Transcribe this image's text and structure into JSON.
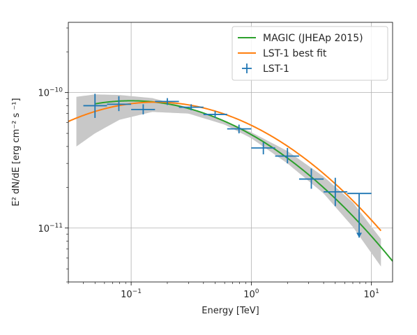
{
  "chart_data": {
    "type": "scatter",
    "title": "",
    "xlabel": "Energy [TeV]",
    "ylabel": "E² dN/dE [erg cm⁻² s ⁻¹]",
    "xscale": "log",
    "yscale": "log",
    "xlim": [
      0.03,
      15
    ],
    "ylim": [
      4e-12,
      3.3e-10
    ],
    "grid": true,
    "legend_placement": "top-right",
    "x_major_ticks": [
      {
        "value": 0.1,
        "mantissa": "10",
        "exponent": "−1"
      },
      {
        "value": 1,
        "mantissa": "10",
        "exponent": "0"
      },
      {
        "value": 10,
        "mantissa": "10",
        "exponent": "1"
      }
    ],
    "y_major_ticks": [
      {
        "value": 1e-11,
        "mantissa": "10",
        "exponent": "−11"
      },
      {
        "value": 1e-10,
        "mantissa": "10",
        "exponent": "−10"
      }
    ],
    "series": [
      {
        "name": "MAGIC (JHEAp 2015)",
        "kind": "logparabola",
        "color": "#2ca02c",
        "x_range": [
          0.05,
          15
        ],
        "peak_x": 0.1,
        "peak_y": 8.7e-11,
        "curvature": 0.25
      },
      {
        "name": "LST-1 best fit",
        "kind": "logparabola",
        "color": "#ff7f0e",
        "x_range": [
          0.03,
          12
        ],
        "peak_x": 0.16,
        "peak_y": 8.5e-11,
        "curvature": 0.27,
        "band_color": "#c8c8c8",
        "band_x_range": [
          0.035,
          12
        ],
        "band_upper": [
          [
            0.035,
            9.3e-11
          ],
          [
            0.05,
            9.7e-11
          ],
          [
            0.08,
            9.6e-11
          ],
          [
            0.15,
            9.1e-11
          ],
          [
            0.3,
            7.8e-11
          ],
          [
            0.6,
            6.2e-11
          ],
          [
            1,
            5.1e-11
          ],
          [
            2,
            3.7e-11
          ],
          [
            4,
            2.4e-11
          ],
          [
            7,
            1.55e-11
          ],
          [
            12,
            8.3e-12
          ]
        ],
        "band_lower": [
          [
            0.035,
            4e-11
          ],
          [
            0.05,
            5e-11
          ],
          [
            0.08,
            6.3e-11
          ],
          [
            0.15,
            7.2e-11
          ],
          [
            0.3,
            7e-11
          ],
          [
            0.6,
            5.8e-11
          ],
          [
            1,
            4.6e-11
          ],
          [
            2,
            3e-11
          ],
          [
            4,
            1.8e-11
          ],
          [
            7,
            1.02e-11
          ],
          [
            12,
            5.2e-12
          ]
        ]
      },
      {
        "name": "LST-1",
        "kind": "errorbar",
        "color": "#1f77b4",
        "points": [
          {
            "x": 0.05,
            "xlo": 0.04,
            "xhi": 0.063,
            "y": 8e-11,
            "ylo": 6.5e-11,
            "yhi": 9.8e-11,
            "upper_limit": false
          },
          {
            "x": 0.079,
            "xlo": 0.063,
            "xhi": 0.1,
            "y": 8.2e-11,
            "ylo": 7.3e-11,
            "yhi": 9.4e-11,
            "upper_limit": false
          },
          {
            "x": 0.126,
            "xlo": 0.1,
            "xhi": 0.158,
            "y": 7.5e-11,
            "ylo": 6.9e-11,
            "yhi": 8.2e-11,
            "upper_limit": false
          },
          {
            "x": 0.2,
            "xlo": 0.158,
            "xhi": 0.25,
            "y": 8.6e-11,
            "ylo": 8.1e-11,
            "yhi": 9.1e-11,
            "upper_limit": false
          },
          {
            "x": 0.316,
            "xlo": 0.25,
            "xhi": 0.4,
            "y": 7.8e-11,
            "ylo": 7.4e-11,
            "yhi": 8.2e-11,
            "upper_limit": false
          },
          {
            "x": 0.5,
            "xlo": 0.4,
            "xhi": 0.63,
            "y": 6.9e-11,
            "ylo": 6.5e-11,
            "yhi": 7.3e-11,
            "upper_limit": false
          },
          {
            "x": 0.79,
            "xlo": 0.63,
            "xhi": 1.0,
            "y": 5.4e-11,
            "ylo": 5e-11,
            "yhi": 5.8e-11,
            "upper_limit": false
          },
          {
            "x": 1.26,
            "xlo": 1.0,
            "xhi": 1.58,
            "y": 3.9e-11,
            "ylo": 3.5e-11,
            "yhi": 4.3e-11,
            "upper_limit": false
          },
          {
            "x": 2.0,
            "xlo": 1.58,
            "xhi": 2.5,
            "y": 3.4e-11,
            "ylo": 3e-11,
            "yhi": 3.9e-11,
            "upper_limit": false
          },
          {
            "x": 3.16,
            "xlo": 2.5,
            "xhi": 4.0,
            "y": 2.3e-11,
            "ylo": 1.95e-11,
            "yhi": 2.75e-11,
            "upper_limit": false
          },
          {
            "x": 5.0,
            "xlo": 4.0,
            "xhi": 6.3,
            "y": 1.85e-11,
            "ylo": 1.45e-11,
            "yhi": 2.35e-11,
            "upper_limit": false
          },
          {
            "x": 7.9,
            "xlo": 6.3,
            "xhi": 10.0,
            "y": 1.8e-11,
            "ylo": 8.5e-12,
            "yhi": 1.8e-11,
            "upper_limit": true
          }
        ]
      }
    ]
  }
}
